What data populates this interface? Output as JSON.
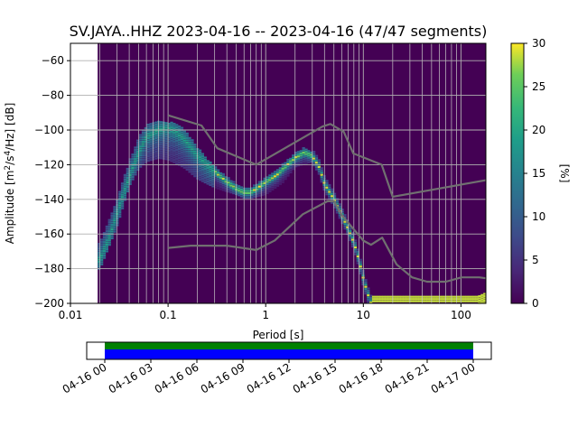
{
  "chart_data": [
    {
      "type": "heatmap",
      "title": "SV.JAYA..HHZ   2023-04-16 -- 2023-04-16  (47/47 segments)",
      "xlabel": "Period [s]",
      "ylabel": "Amplitude [m²/s⁴/Hz] [dB]",
      "x_scale": "log",
      "xlim": [
        0.01,
        180
      ],
      "ylim": [
        -200,
        -50
      ],
      "grid": true,
      "x_ticks": [
        "0.01",
        "0.1",
        "1",
        "10",
        "100"
      ],
      "y_ticks": [
        "-60",
        "-80",
        "-100",
        "-120",
        "-140",
        "-160",
        "-180",
        "-200"
      ],
      "background_color": "#440154",
      "data_start_period": 0.019,
      "colorbar": {
        "label": "[%]",
        "range": [
          0,
          30
        ],
        "ticks": [
          "0",
          "5",
          "10",
          "15",
          "20",
          "25",
          "30"
        ],
        "colormap": "viridis"
      },
      "ppsd_mode": {
        "period": [
          0.02,
          0.025,
          0.03,
          0.04,
          0.05,
          0.06,
          0.08,
          0.1,
          0.12,
          0.15,
          0.2,
          0.3,
          0.4,
          0.5,
          0.6,
          0.7,
          0.8,
          1,
          1.3,
          1.6,
          2,
          2.5,
          3,
          3.5,
          4,
          5,
          6,
          7,
          8,
          9,
          10,
          11,
          12,
          15,
          20,
          50,
          100,
          150,
          180
        ],
        "db": [
          -175,
          -162,
          -148,
          -127,
          -113,
          -104,
          -100,
          -99,
          -101,
          -106,
          -115,
          -124,
          -130,
          -134,
          -136,
          -136,
          -134,
          -130,
          -126,
          -121,
          -116,
          -113,
          -115,
          -121,
          -131,
          -140,
          -149,
          -157,
          -165,
          -175,
          -186,
          -194,
          -200,
          -200,
          -200,
          -200,
          -200,
          -200,
          -198
        ]
      },
      "ppsd_band": {
        "period": [
          0.02,
          0.03,
          0.04,
          0.05,
          0.06,
          0.08,
          0.1,
          0.12,
          0.15,
          0.2,
          0.3,
          0.5,
          0.7,
          1,
          1.5,
          2,
          3
        ],
        "upper": [
          -165,
          -140,
          -118,
          -104,
          -97,
          -95,
          -95,
          -96,
          -100,
          -110,
          -122,
          -134,
          -138,
          -134,
          -124,
          -115,
          -112
        ],
        "lower": [
          -180,
          -155,
          -132,
          -122,
          -118,
          -116,
          -117,
          -119,
          -122,
          -128,
          -133,
          -137,
          -139,
          -137,
          -130,
          -121,
          -118
        ]
      },
      "nhnm": {
        "period": [
          0.1,
          0.22,
          0.32,
          0.8,
          3.8,
          4.6,
          6.3,
          7.9,
          15.4,
          20,
          354.8
        ],
        "db": [
          -91.5,
          -97.4,
          -110.5,
          -120,
          -98,
          -96.5,
          -101,
          -113.5,
          -120,
          -138.5,
          -126
        ]
      },
      "nlnm": {
        "period": [
          0.1,
          0.17,
          0.4,
          0.8,
          1.24,
          2.4,
          4.3,
          5,
          6,
          10,
          12,
          15.6,
          21.9,
          31.6,
          45,
          70,
          101,
          154,
          328
        ],
        "db": [
          -168,
          -166.7,
          -166.7,
          -169.2,
          -163.7,
          -148.6,
          -141.1,
          -141.1,
          -149,
          -163.8,
          -166.2,
          -162.1,
          -177.5,
          -185,
          -187.5,
          -187.5,
          -185,
          -185,
          -187.5
        ]
      }
    },
    {
      "type": "timeline",
      "x_ticks": [
        "04-16 00",
        "04-16 03",
        "04-16 06",
        "04-16 09",
        "04-16 12",
        "04-16 15",
        "04-16 18",
        "04-16 21",
        "04-17 00"
      ],
      "coverage": {
        "start_hour": 0,
        "end_hour": 24,
        "colors": [
          "#008000",
          "#0000ff"
        ]
      }
    }
  ]
}
